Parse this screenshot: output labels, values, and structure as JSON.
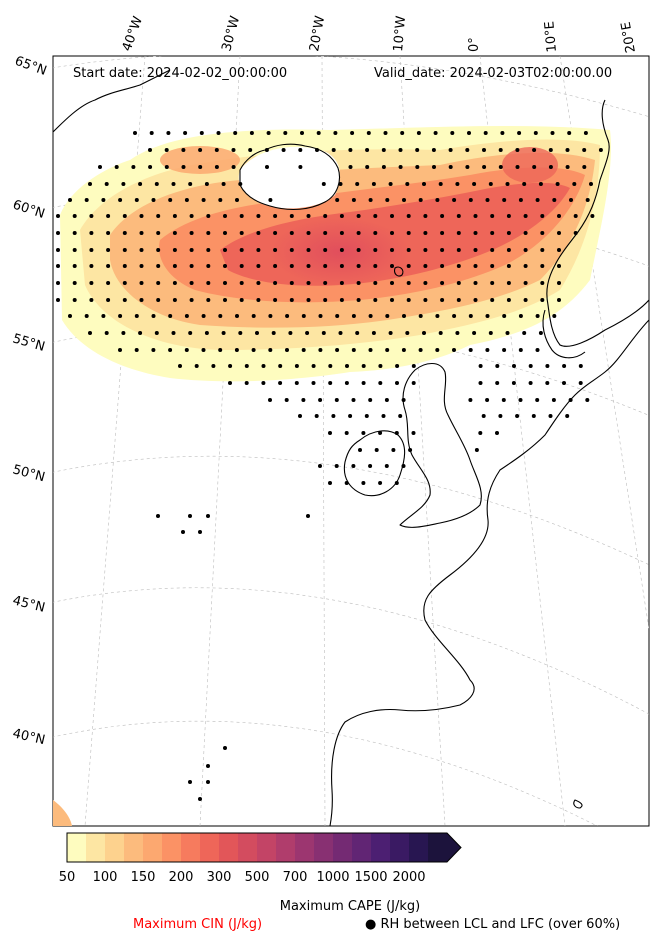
{
  "header": {
    "start_date": "Start date: 2024-02-02_00:00:00",
    "valid_date": "Valid_date: 2024-02-03T02:00:00.00"
  },
  "lon_labels": [
    "40°W",
    "30°W",
    "20°W",
    "10°W",
    "0°",
    "10°E",
    "20°E"
  ],
  "lat_labels": [
    "65°N",
    "60°N",
    "55°N",
    "50°N",
    "45°N",
    "40°N"
  ],
  "colorbar": {
    "ticks": [
      "50",
      "100",
      "150",
      "200",
      "300",
      "500",
      "700",
      "1000",
      "1500",
      "2000"
    ],
    "title": "Maximum CAPE (J/kg)",
    "colors": [
      "#fefcbf",
      "#fde6a3",
      "#fdd28e",
      "#fcbb7d",
      "#fca870",
      "#fb9265",
      "#f67b5e",
      "#ee6659",
      "#e25659",
      "#d34c5f",
      "#c34466",
      "#b03d6c",
      "#9c3670",
      "#883072",
      "#742a73",
      "#612574",
      "#4c1f72",
      "#3a1a63",
      "#281651",
      "#1c133c"
    ]
  },
  "legend": {
    "cin": "Maximum CIN (J/kg)",
    "rh": "● RH between LCL and LFC (over 60%)"
  },
  "colors": {
    "land_outline": "#000000",
    "cin": "#ff0000"
  }
}
